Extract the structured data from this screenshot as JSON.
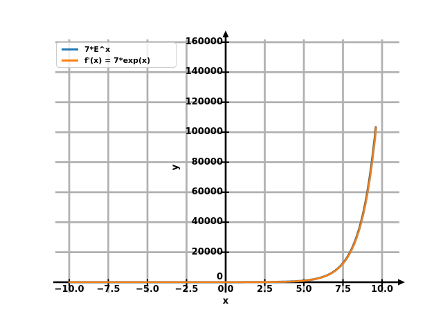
{
  "chart_data": {
    "type": "line",
    "title": "",
    "xlabel": "x",
    "ylabel": "y",
    "grid": true,
    "grid_color": "#b0b0b0",
    "axis_color": "#000000",
    "background_color": "#ffffff",
    "legend_position": "upper left",
    "xlim": [
      -11,
      11
    ],
    "ylim": [
      -7000,
      163000
    ],
    "x_ticks": {
      "values": [
        -10,
        -7.5,
        -5,
        -2.5,
        0,
        2.5,
        5,
        7.5,
        10
      ],
      "labels": [
        "−10.0",
        "−7.5",
        "−5.0",
        "−2.5",
        "0.0",
        "2.5",
        "5.0",
        "7.5",
        "10.0"
      ]
    },
    "y_ticks": {
      "values": [
        0,
        20000,
        40000,
        60000,
        80000,
        100000,
        120000,
        140000,
        160000
      ],
      "labels": [
        "0",
        "20000",
        "40000",
        "60000",
        "80000",
        "100000",
        "120000",
        "140000",
        "160000"
      ]
    },
    "series": [
      {
        "name": "7*E^x",
        "color": "#1f77b4",
        "expression": "7*exp(x)",
        "coefficient": 7,
        "x_start": -10,
        "x_end": 9.6
      },
      {
        "name": "f'(x) = 7*exp(x)",
        "color": "#ff7f0e",
        "expression": "7*exp(x)",
        "coefficient": 7,
        "x_start": -10,
        "x_end": 9.6
      }
    ],
    "sample_points": {
      "x": [
        -10,
        -5,
        0,
        2.5,
        5,
        7.5,
        9,
        9.6
      ],
      "y": [
        0.00032,
        0.047,
        7,
        85.3,
        1038.8,
        12664,
        56719,
        103356
      ]
    }
  }
}
